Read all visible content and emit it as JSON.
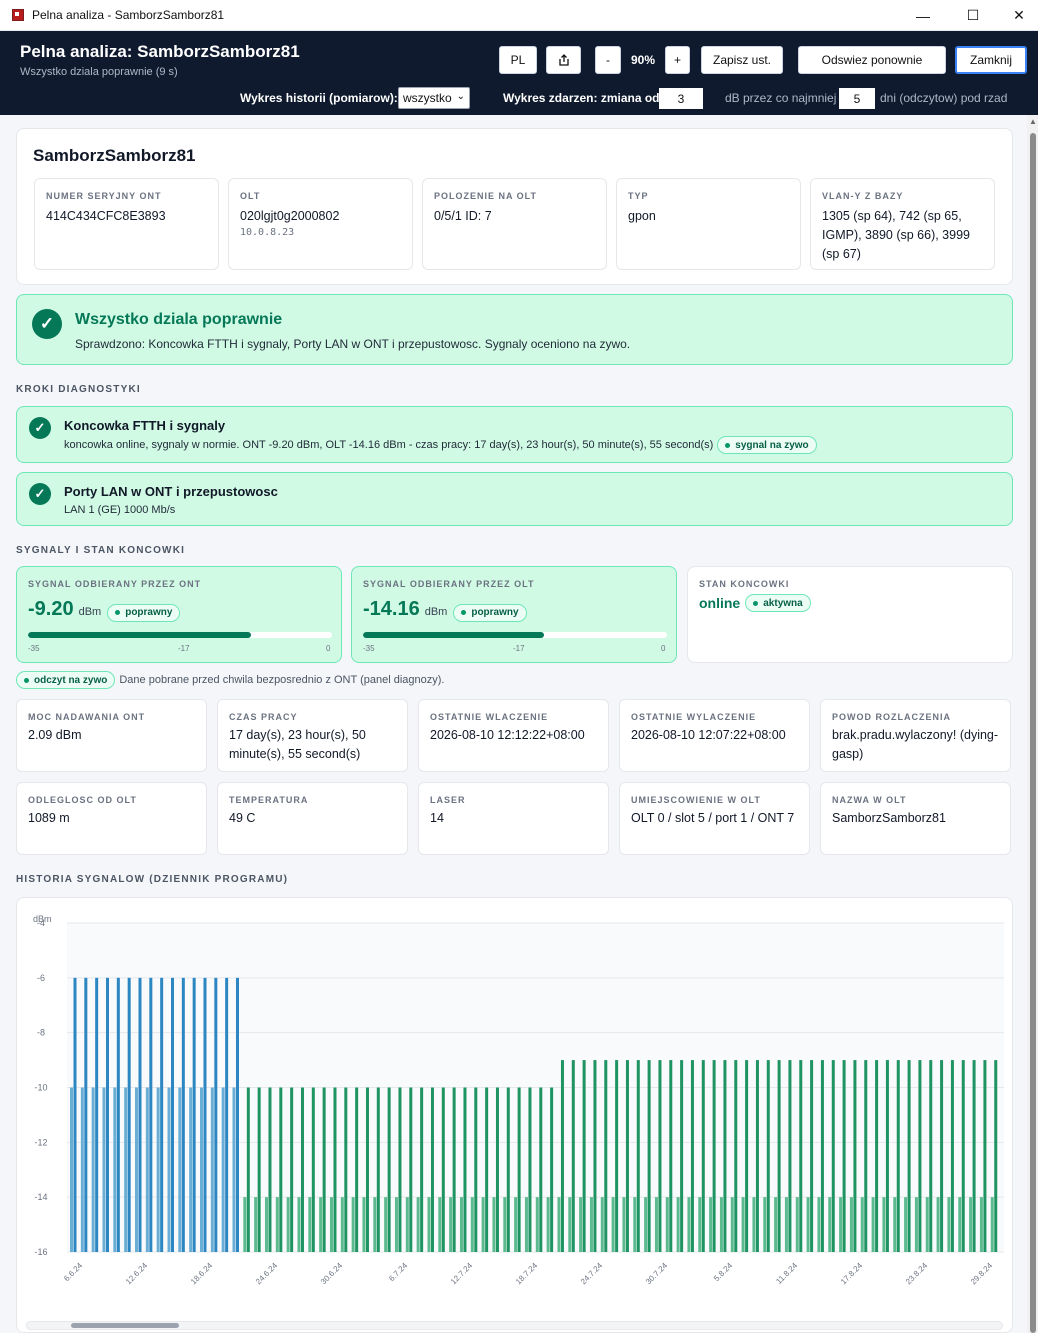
{
  "window": {
    "title": "Pelna analiza - SamborzSamborz81",
    "minimize": "—",
    "maximize": "☐",
    "close": "✕"
  },
  "header": {
    "title": "Pelna analiza: SamborzSamborz81",
    "subtitle": "Wszystko dziala poprawnie  (9 s)",
    "lang_button": "PL",
    "export_icon": "export-icon",
    "zoom_minus": "-",
    "zoom_value": "90%",
    "zoom_plus": "+",
    "save_button": "Zapisz ust.",
    "refresh_button": "Odswiez ponownie",
    "close_button": "Zamknij",
    "history_label": "Wykres historii (pomiarow):",
    "history_select": "wszystko",
    "events_label": "Wykres zdarzen: zmiana od",
    "events_db_value": "3",
    "events_db_text": "dB przez co najmniej",
    "events_days_value": "5",
    "events_days_text": "dni (odczytow) pod rzad"
  },
  "device": {
    "name": "SamborzSamborz81",
    "fields": [
      {
        "label": "NUMER SERYJNY ONT",
        "value": "414C434CFC8E3893",
        "sub": ""
      },
      {
        "label": "OLT",
        "value": "020lgjt0g2000802",
        "sub": "10.0.8.23"
      },
      {
        "label": "POLOZENIE NA OLT",
        "value": "0/5/1 ID: 7",
        "sub": ""
      },
      {
        "label": "TYP",
        "value": "gpon",
        "sub": ""
      },
      {
        "label": "VLAN-Y Z BAZY",
        "value": "1305 (sp 64), 742 (sp 65, IGMP), 3890 (sp 66), 3999 (sp 67)",
        "sub": ""
      }
    ]
  },
  "status": {
    "title": "Wszystko dziala poprawnie",
    "text": "Sprawdzono: Koncowka FTTH i sygnaly, Porty LAN w ONT i przepustowosc. Sygnaly oceniono na zywo."
  },
  "steps_title": "KROKI DIAGNOSTYKI",
  "steps": [
    {
      "title": "Koncowka FTTH i sygnaly",
      "text": "koncowka online, sygnaly w normie. ONT -9.20 dBm, OLT -14.16 dBm - czas pracy: 17 day(s), 23 hour(s), 50 minute(s), 55 second(s)",
      "badge": "sygnal na zywo"
    },
    {
      "title": "Porty LAN w ONT i przepustowosc",
      "text": "LAN 1 (GE) 1000 Mb/s",
      "badge": ""
    }
  ],
  "signals_title": "SYGNALY I STAN KONCOWKI",
  "signals": [
    {
      "label": "SYGNAL ODBIERANY PRZEZ ONT",
      "value": "-9.20",
      "unit": "dBm",
      "badge": "poprawny",
      "fill_fraction": 0.735,
      "ticks": [
        "-35",
        "-17",
        "0"
      ]
    },
    {
      "label": "SYGNAL ODBIERANY PRZEZ OLT",
      "value": "-14.16",
      "unit": "dBm",
      "badge": "poprawny",
      "fill_fraction": 0.595,
      "ticks": [
        "-35",
        "-17",
        "0"
      ]
    }
  ],
  "state": {
    "label": "STAN KONCOWKI",
    "value": "online",
    "badge": "aktywna"
  },
  "live": {
    "badge": "odczyt na zywo",
    "note": "Dane pobrane przed chwila bezposrednio z ONT (panel diagnozy)."
  },
  "metrics": [
    {
      "label": "MOC NADAWANIA ONT",
      "value": "2.09 dBm"
    },
    {
      "label": "CZAS PRACY",
      "value": "17 day(s), 23 hour(s), 50 minute(s), 55 second(s)"
    },
    {
      "label": "OSTATNIE WLACZENIE",
      "value": "2026-08-10 12:12:22+08:00"
    },
    {
      "label": "OSTATNIE WYLACZENIE",
      "value": "2026-08-10 12:07:22+08:00"
    },
    {
      "label": "POWOD ROZLACZENIA",
      "value": "brak.pradu.wylaczony! (dying-gasp)"
    },
    {
      "label": "ODLEGLOSC OD OLT",
      "value": "1089 m"
    },
    {
      "label": "TEMPERATURA",
      "value": "49 C"
    },
    {
      "label": "LASER",
      "value": "14"
    },
    {
      "label": "UMIEJSCOWIENIE W OLT",
      "value": "OLT 0 / slot 5 / port 1 / ONT 7"
    },
    {
      "label": "NAZWA W OLT",
      "value": "SamborzSamborz81"
    }
  ],
  "history_title": "HISTORIA SYGNALOW (DZIENNIK PROGRAMU)",
  "colors": {
    "blue_light": "#6aaed6",
    "blue_dark": "#2b86c2",
    "green_light": "#5cba8f",
    "green_dark": "#1f9463"
  },
  "chart_data": {
    "type": "bar",
    "ylabel": "dBm",
    "ylim": [
      -16,
      -4
    ],
    "yticks": [
      -4,
      -6,
      -8,
      -10,
      -12,
      -14,
      -16
    ],
    "xticks": [
      "6.6.24",
      "12.6.24",
      "18.6.24",
      "24.6.24",
      "30.6.24",
      "6.7.24",
      "12.7.24",
      "18.7.24",
      "24.7.24",
      "30.7.24",
      "5.8.24",
      "11.8.24",
      "17.8.24",
      "23.8.24",
      "29.8.24"
    ],
    "grid": true,
    "series": [
      {
        "period": "2024-06-05 to 2024-06-21",
        "olt_dbm": -10,
        "ont_dbm": -6
      },
      {
        "period": "2024-06-21 to 2024-07-20",
        "olt_dbm": -14,
        "ont_dbm": -10
      },
      {
        "period": "2024-07-20 to 2024-08-30",
        "olt_dbm": -14,
        "ont_dbm": -9
      }
    ]
  }
}
